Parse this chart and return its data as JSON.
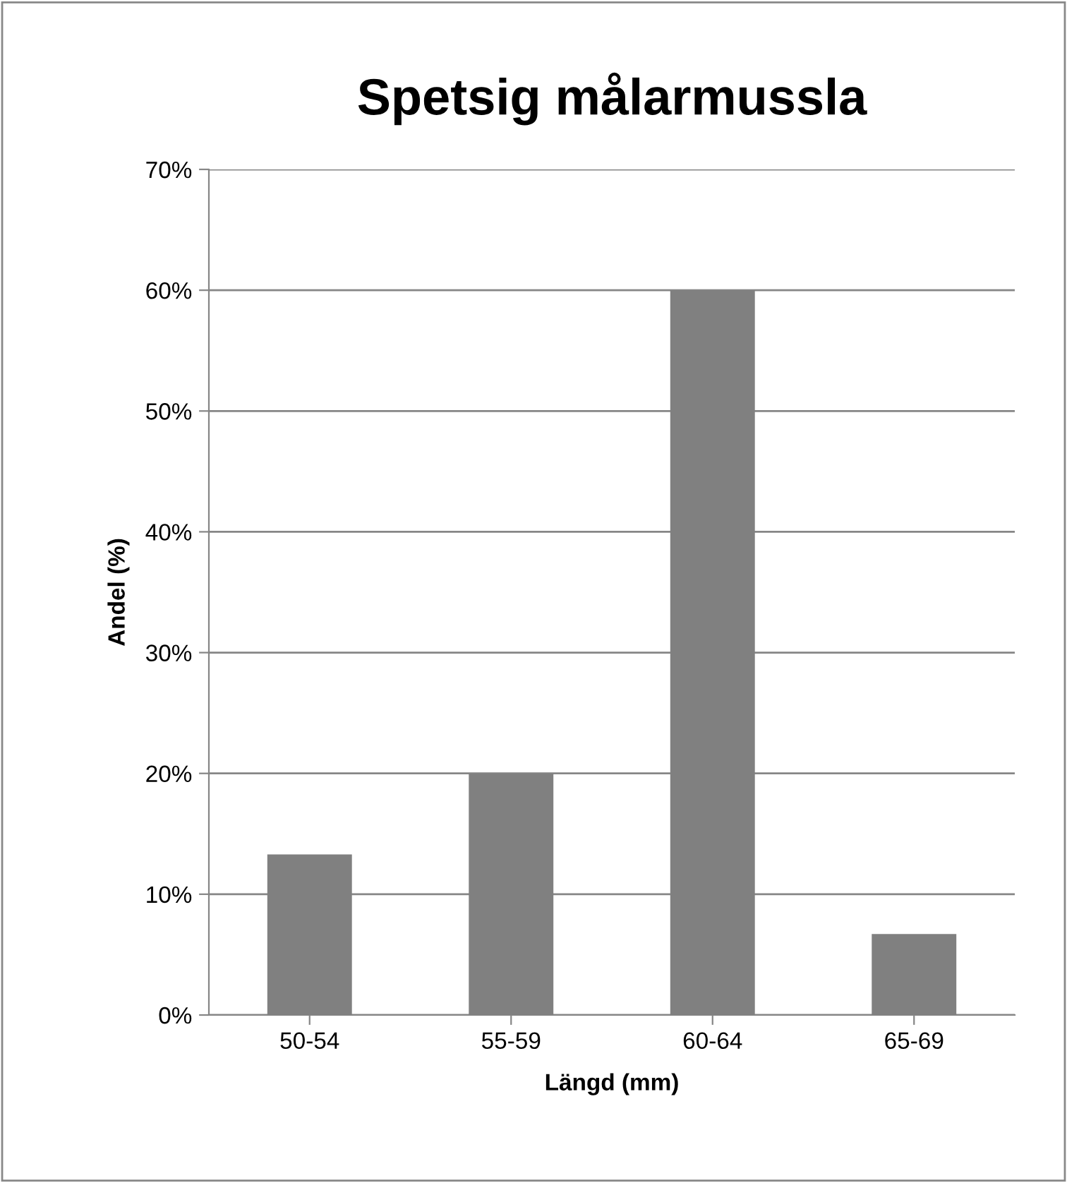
{
  "chart_data": {
    "type": "bar",
    "title": "Spetsig målarmussla",
    "xlabel": "Längd (mm)",
    "ylabel": "Andel (%)",
    "categories": [
      "50-54",
      "55-59",
      "60-64",
      "65-69"
    ],
    "values": [
      13.3,
      20,
      60,
      6.7
    ],
    "color": "#808080",
    "ylim": [
      0,
      70
    ],
    "yticks": [
      {
        "value": 0,
        "label": "0%"
      },
      {
        "value": 10,
        "label": "10%"
      },
      {
        "value": 20,
        "label": "20%"
      },
      {
        "value": 30,
        "label": "30%"
      },
      {
        "value": 40,
        "label": "40%"
      },
      {
        "value": 50,
        "label": "50%"
      },
      {
        "value": 60,
        "label": "60%"
      },
      {
        "value": 70,
        "label": "70%"
      }
    ],
    "grid": "y"
  }
}
